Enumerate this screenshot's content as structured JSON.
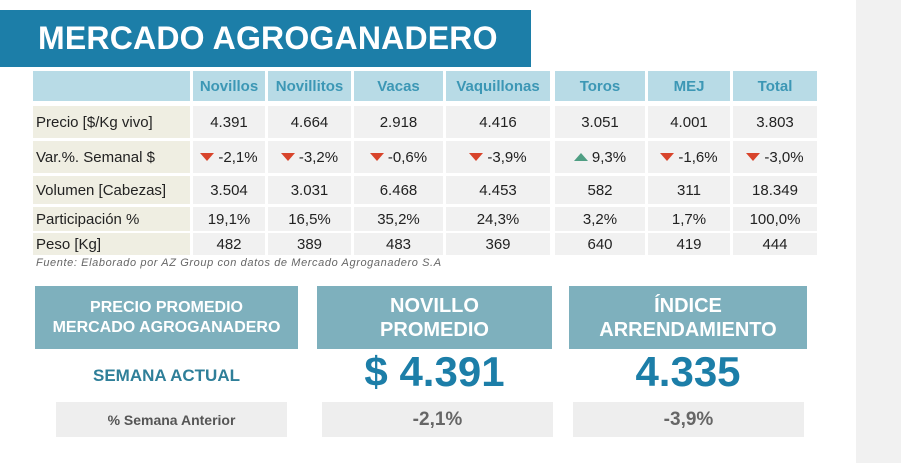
{
  "title": "MERCADO AGROGANADERO",
  "table": {
    "headers": [
      "Novillos",
      "Novillitos",
      "Vacas",
      "Vaquillonas",
      "Toros",
      "MEJ",
      "Total"
    ],
    "rows": [
      {
        "label": "Precio [$/Kg vivo]",
        "values": [
          "4.391",
          "4.664",
          "2.918",
          "4.416",
          "3.051",
          "4.001",
          "3.803"
        ]
      },
      {
        "label": "Var.%. Semanal $",
        "values": [
          "-2,1%",
          "-3,2%",
          "-0,6%",
          "-3,9%",
          "9,3%",
          "-1,6%",
          "-3,0%"
        ],
        "trends": [
          "down",
          "down",
          "down",
          "down",
          "up",
          "down",
          "down"
        ]
      },
      {
        "label": "Volumen [Cabezas]",
        "values": [
          "3.504",
          "3.031",
          "6.468",
          "4.453",
          "582",
          "311",
          "18.349"
        ]
      },
      {
        "label": "Participación %",
        "values": [
          "19,1%",
          "16,5%",
          "35,2%",
          "24,3%",
          "3,2%",
          "1,7%",
          "100,0%"
        ]
      },
      {
        "label": "Peso [Kg]",
        "values": [
          "482",
          "389",
          "483",
          "369",
          "640",
          "419",
          "444"
        ]
      }
    ]
  },
  "source": "Fuente: Elaborado por AZ Group con datos de Mercado Agroganadero S.A",
  "panels": {
    "precio": {
      "line1": "PRECIO PROMEDIO",
      "line2": "MERCADO AGROGANADERO"
    },
    "novillo": {
      "line1": "NOVILLO",
      "line2": "PROMEDIO"
    },
    "indice": {
      "line1": "ÍNDICE",
      "line2": "ARRENDAMIENTO"
    }
  },
  "semana_actual_label": "SEMANA ACTUAL",
  "novillo_value": "$ 4.391",
  "indice_value": "4.335",
  "semana_anterior_label": "% Semana Anterior",
  "novillo_var": "-2,1%",
  "indice_var": "-3,9%",
  "colors": {
    "title_bg": "#1c7ea8",
    "header_bg": "#b8dbe6",
    "panel_bg": "#7eb0bd",
    "down": "#d8442b",
    "up": "#4f9e83"
  }
}
